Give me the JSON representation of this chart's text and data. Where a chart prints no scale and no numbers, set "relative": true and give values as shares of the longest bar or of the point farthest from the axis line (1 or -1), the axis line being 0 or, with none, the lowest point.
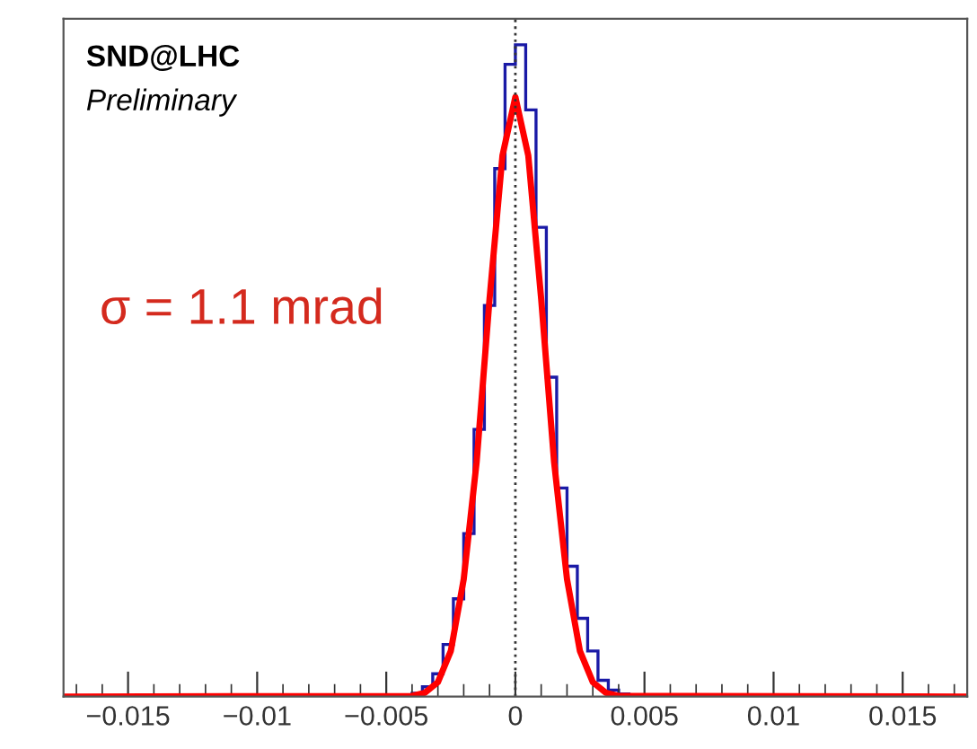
{
  "chart_data": {
    "type": "histogram",
    "relative": true,
    "annotations": [
      "SND@LHC",
      "Preliminary",
      "σ = 1.1 mrad"
    ],
    "xlim": [
      -0.0175,
      0.0175
    ],
    "xticks": [
      {
        "value": -0.015,
        "label": "−0.015"
      },
      {
        "value": -0.01,
        "label": "−0.01"
      },
      {
        "value": -0.005,
        "label": "−0.005"
      },
      0,
      0.005,
      0.01,
      0.015
    ],
    "ref_lines": [
      {
        "axis": "x",
        "value": 0,
        "color": "#333333",
        "line_style": "dotted"
      }
    ],
    "series": [
      {
        "color": "#1a1aa6",
        "bins": [
          -0.004,
          -0.0036,
          -0.0032,
          -0.0028,
          -0.0024,
          -0.002,
          -0.0016,
          -0.0012,
          -0.0008,
          -0.0004,
          0,
          0.0004,
          0.0008,
          0.0012,
          0.0016,
          0.002,
          0.0024,
          0.0028,
          0.0032,
          0.0036,
          0.004,
          0.0044
        ],
        "values": [
          0.005,
          0.015,
          0.035,
          0.08,
          0.15,
          0.25,
          0.41,
          0.6,
          0.81,
          0.97,
          1.0,
          0.9,
          0.72,
          0.49,
          0.32,
          0.2,
          0.12,
          0.07,
          0.025,
          0.01,
          0.004
        ]
      },
      {
        "type": "line",
        "color": "#ff0000",
        "x": [
          -0.0175,
          -0.004,
          -0.0035,
          -0.003,
          -0.0025,
          -0.002,
          -0.0015,
          -0.001,
          -0.0005,
          0,
          0.0005,
          0.001,
          0.0015,
          0.002,
          0.0025,
          0.003,
          0.0035,
          0.004,
          0.0175
        ],
        "values": [
          0,
          0.001,
          0.006,
          0.022,
          0.07,
          0.18,
          0.36,
          0.61,
          0.83,
          0.92,
          0.83,
          0.61,
          0.36,
          0.18,
          0.07,
          0.022,
          0.006,
          0.001,
          0
        ]
      }
    ]
  }
}
